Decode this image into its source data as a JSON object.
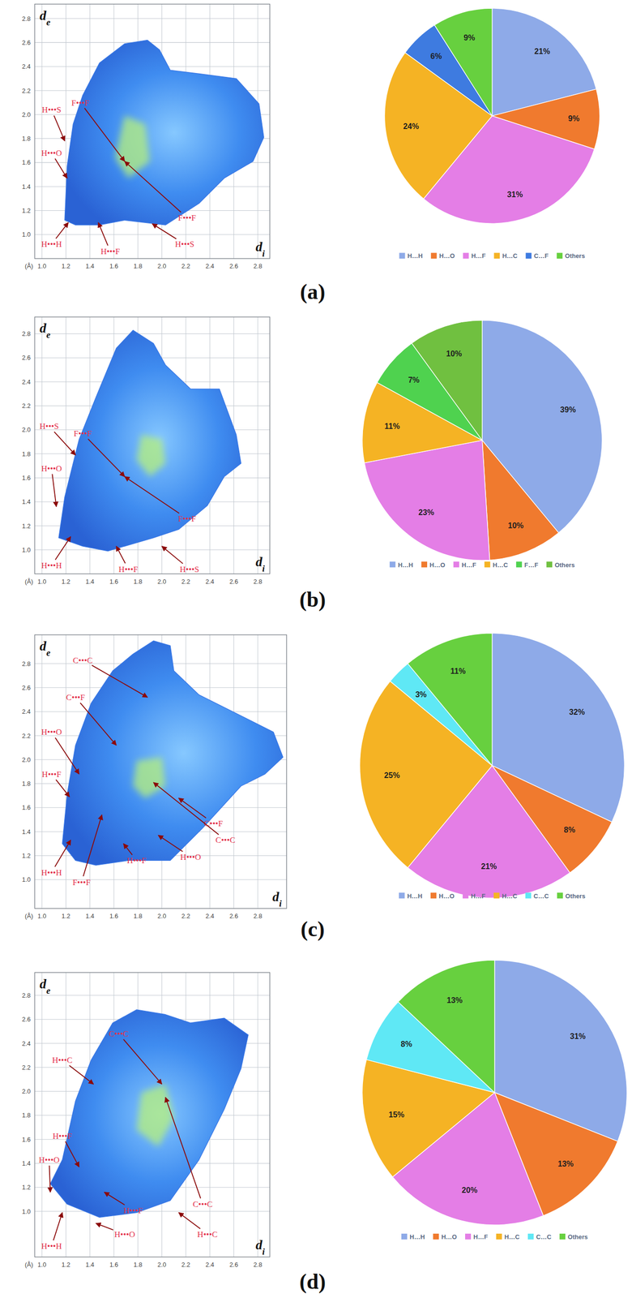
{
  "chart_data": [
    {
      "type": "fingerprint",
      "title": "(a)",
      "x_label": "di",
      "y_label": "de",
      "unit_label": "(Å)",
      "xlim": [
        0.94,
        2.9
      ],
      "ylim": [
        0.8,
        2.92
      ],
      "xticks": [
        {
          "value": 1,
          "label": "1.0"
        },
        1.2,
        1.4,
        1.6,
        1.8,
        {
          "value": 2,
          "label": "2.0"
        },
        2.2,
        2.4,
        2.6,
        2.8
      ],
      "yticks": [
        {
          "value": 1,
          "label": "1.0"
        },
        1.2,
        1.4,
        1.6,
        1.8,
        {
          "value": 2,
          "label": "2.0"
        },
        2.2,
        2.4,
        2.6,
        2.8
      ],
      "grid": true,
      "outline": {
        "x": [
          1.19,
          1.21,
          1.26,
          1.34,
          1.48,
          1.69,
          1.88,
          1.98,
          2.07,
          2.31,
          2.62,
          2.81,
          2.85,
          2.76,
          2.52,
          2.31,
          2.03,
          1.69,
          1.48,
          1.28
        ],
        "y": [
          1.12,
          1.57,
          1.92,
          2.16,
          2.43,
          2.59,
          2.62,
          2.54,
          2.37,
          2.34,
          2.3,
          2.09,
          1.81,
          1.61,
          1.47,
          1.26,
          1.08,
          1.12,
          1.08,
          1.08
        ]
      },
      "core": {
        "x": [
          1.69,
          1.86,
          1.9,
          1.72,
          1.61
        ],
        "y": [
          1.99,
          1.92,
          1.61,
          1.47,
          1.64
        ]
      },
      "annotations": [
        {
          "text": "H•••S",
          "x": 1.19,
          "y": 1.78,
          "text_x": 1.08,
          "text_y": 2.04
        },
        {
          "text": "F•••F",
          "x": 1.69,
          "y": 1.61,
          "text_x": 1.32,
          "text_y": 2.1
        },
        {
          "text": "H•••O",
          "x": 1.21,
          "y": 1.47,
          "text_x": 1.08,
          "text_y": 1.68
        },
        {
          "text": "H•••H",
          "x": 1.22,
          "y": 1.1,
          "text_x": 1.08,
          "text_y": 0.92
        },
        {
          "text": "H•••F",
          "x": 1.47,
          "y": 1.1,
          "text_x": 1.57,
          "text_y": 0.86
        },
        {
          "text": "H•••S",
          "x": 1.92,
          "y": 1.09,
          "text_x": 2.19,
          "text_y": 0.92
        },
        {
          "text": "F•••F",
          "x": 1.69,
          "y": 1.61,
          "text_x": 2.21,
          "text_y": 1.14
        }
      ]
    },
    {
      "type": "pie",
      "categories": [
        "H…H",
        "H…O",
        "H…F",
        "H…C",
        "C…F",
        "Others"
      ],
      "values": [
        21,
        9,
        31,
        24,
        6,
        9
      ],
      "value_labels": [
        "21%",
        "9%",
        "31%",
        "24%",
        "6%",
        "9%"
      ],
      "colors": [
        "#8eaae8",
        "#f07a2e",
        "#e47ee6",
        "#f5b324",
        "#3e7be0",
        "#67d03f"
      ],
      "data_labels": true,
      "legend": "bottom"
    },
    {
      "type": "fingerprint",
      "title": "(b)",
      "x_label": "di",
      "y_label": "de",
      "unit_label": "(Å)",
      "xlim": [
        0.94,
        2.9
      ],
      "ylim": [
        0.8,
        2.94
      ],
      "xticks": [
        {
          "value": 1,
          "label": "1.0"
        },
        1.2,
        1.4,
        1.6,
        1.8,
        {
          "value": 2,
          "label": "2.0"
        },
        2.2,
        2.4,
        2.6,
        2.8
      ],
      "yticks": [
        {
          "value": 1,
          "label": "1.0"
        },
        1.2,
        1.4,
        1.6,
        1.8,
        {
          "value": 2,
          "label": "2.0"
        },
        2.2,
        2.4,
        2.6,
        2.8
      ],
      "grid": true,
      "outline": {
        "x": [
          1.14,
          1.19,
          1.31,
          1.45,
          1.62,
          1.76,
          1.93,
          2.03,
          2.24,
          2.48,
          2.62,
          2.66,
          2.52,
          2.38,
          2.14,
          1.93,
          1.55,
          1.34
        ],
        "y": [
          1.1,
          1.44,
          1.92,
          2.27,
          2.68,
          2.83,
          2.72,
          2.54,
          2.34,
          2.34,
          1.96,
          1.72,
          1.61,
          1.37,
          1.17,
          1.1,
          0.99,
          1.03
        ]
      },
      "core": {
        "x": [
          1.83,
          2.0,
          2.03,
          1.9,
          1.79
        ],
        "y": [
          1.96,
          1.92,
          1.72,
          1.61,
          1.75
        ]
      },
      "annotations": [
        {
          "text": "H•••S",
          "x": 1.28,
          "y": 1.79,
          "text_x": 1.06,
          "text_y": 2.03
        },
        {
          "text": "F•••F",
          "x": 1.69,
          "y": 1.61,
          "text_x": 1.34,
          "text_y": 1.97
        },
        {
          "text": "H•••O",
          "x": 1.12,
          "y": 1.36,
          "text_x": 1.08,
          "text_y": 1.68
        },
        {
          "text": "H•••H",
          "x": 1.24,
          "y": 1.11,
          "text_x": 1.08,
          "text_y": 0.87
        },
        {
          "text": "H•••F",
          "x": 1.62,
          "y": 1.03,
          "text_x": 1.72,
          "text_y": 0.84
        },
        {
          "text": "H•••S",
          "x": 2.0,
          "y": 1.03,
          "text_x": 2.23,
          "text_y": 0.84
        },
        {
          "text": "F•••F",
          "x": 1.69,
          "y": 1.61,
          "text_x": 2.21,
          "text_y": 1.26
        }
      ]
    },
    {
      "type": "pie",
      "categories": [
        "H…H",
        "H…O",
        "H…F",
        "H…C",
        "F…F",
        "Others"
      ],
      "values": [
        39,
        10,
        23,
        11,
        7,
        10
      ],
      "value_labels": [
        "39%",
        "10%",
        "23%",
        "11%",
        "7%",
        "10%"
      ],
      "colors": [
        "#8eaae8",
        "#f07a2e",
        "#e47ee6",
        "#f5b324",
        "#4fd24f",
        "#70c040"
      ],
      "data_labels": true,
      "legend": "bottom"
    },
    {
      "type": "fingerprint",
      "title": "(c)",
      "x_label": "di",
      "y_label": "de",
      "unit_label": "(Å)",
      "xlim": [
        0.94,
        3.04
      ],
      "ylim": [
        0.76,
        3.04
      ],
      "xticks": [
        {
          "value": 1,
          "label": "1.0"
        },
        1.2,
        1.4,
        1.6,
        1.8,
        {
          "value": 2,
          "label": "2.0"
        },
        2.2,
        2.4,
        2.6,
        2.8
      ],
      "yticks": [
        {
          "value": 1,
          "label": "1.0"
        },
        1.2,
        1.4,
        1.6,
        1.8,
        {
          "value": 2,
          "label": "2.0"
        },
        2.2,
        2.4,
        2.6,
        2.8
      ],
      "grid": true,
      "outline": {
        "x": [
          1.17,
          1.21,
          1.28,
          1.41,
          1.59,
          1.76,
          1.93,
          2.07,
          2.1,
          2.31,
          2.59,
          2.93,
          3.01,
          2.86,
          2.66,
          2.34,
          2.07,
          1.72,
          1.45,
          1.28
        ],
        "y": [
          1.3,
          1.71,
          2.12,
          2.47,
          2.74,
          2.88,
          2.99,
          2.95,
          2.74,
          2.54,
          2.4,
          2.23,
          2.02,
          1.88,
          1.78,
          1.43,
          1.16,
          1.16,
          1.12,
          1.16
        ]
      },
      "core": {
        "x": [
          1.79,
          2.0,
          2.03,
          1.86,
          1.76
        ],
        "y": [
          1.99,
          2.02,
          1.78,
          1.68,
          1.78
        ]
      },
      "annotations": [
        {
          "text": "C•••C",
          "x": 1.88,
          "y": 2.52,
          "text_x": 1.34,
          "text_y": 2.83
        },
        {
          "text": "C•••F",
          "x": 1.62,
          "y": 2.12,
          "text_x": 1.28,
          "text_y": 2.52
        },
        {
          "text": "H•••O",
          "x": 1.31,
          "y": 1.88,
          "text_x": 1.08,
          "text_y": 2.23
        },
        {
          "text": "H•••F",
          "x": 1.23,
          "y": 1.69,
          "text_x": 1.08,
          "text_y": 1.88
        },
        {
          "text": "H•••H",
          "x": 1.24,
          "y": 1.33,
          "text_x": 1.08,
          "text_y": 1.06
        },
        {
          "text": "F•••F",
          "x": 1.5,
          "y": 1.54,
          "text_x": 1.33,
          "text_y": 0.98
        },
        {
          "text": "H•••F",
          "x": 1.68,
          "y": 1.3,
          "text_x": 1.79,
          "text_y": 1.16
        },
        {
          "text": "H•••O",
          "x": 1.97,
          "y": 1.37,
          "text_x": 2.24,
          "text_y": 1.19
        },
        {
          "text": "C•••F",
          "x": 2.14,
          "y": 1.68,
          "text_x": 2.43,
          "text_y": 1.47
        },
        {
          "text": "C•••C",
          "x": 1.93,
          "y": 1.81,
          "text_x": 2.53,
          "text_y": 1.33
        }
      ]
    },
    {
      "type": "pie",
      "categories": [
        "H…H",
        "H…O",
        "H…F",
        "H…C",
        "C…C",
        "Others"
      ],
      "values": [
        32,
        8,
        21,
        25,
        3,
        11
      ],
      "value_labels": [
        "32%",
        "8%",
        "21%",
        "25%",
        "3%",
        "11%"
      ],
      "colors": [
        "#8eaae8",
        "#f07a2e",
        "#e47ee6",
        "#f5b324",
        "#5fe8f5",
        "#67d03f"
      ],
      "data_labels": true,
      "legend": "bottom"
    },
    {
      "type": "fingerprint",
      "title": "(d)",
      "x_label": "di",
      "y_label": "de",
      "unit_label": "(Å)",
      "xlim": [
        0.94,
        2.9
      ],
      "ylim": [
        0.62,
        2.99
      ],
      "xticks": [
        {
          "value": 1,
          "label": "1.0"
        },
        1.2,
        1.4,
        1.6,
        1.8,
        {
          "value": 2,
          "label": "2.0"
        },
        2.2,
        2.4,
        2.6,
        2.8
      ],
      "yticks": [
        {
          "value": 1,
          "label": "1.0"
        },
        1.2,
        1.4,
        1.6,
        1.8,
        {
          "value": 2,
          "label": "2.0"
        },
        2.2,
        2.4,
        2.6,
        2.8
      ],
      "grid": true,
      "outline": {
        "x": [
          1.07,
          1.17,
          1.28,
          1.41,
          1.59,
          1.79,
          2.03,
          2.24,
          2.52,
          2.72,
          2.66,
          2.52,
          2.31,
          2.07,
          1.79,
          1.48,
          1.21
        ],
        "y": [
          1.23,
          1.43,
          1.92,
          2.26,
          2.57,
          2.68,
          2.64,
          2.57,
          2.61,
          2.47,
          2.19,
          1.85,
          1.43,
          1.09,
          0.99,
          0.95,
          1.06
        ]
      },
      "core": {
        "x": [
          1.83,
          2.03,
          2.1,
          1.97,
          1.79
        ],
        "y": [
          1.99,
          2.06,
          1.78,
          1.54,
          1.68
        ]
      },
      "annotations": [
        {
          "text": "C•••C",
          "x": 2.0,
          "y": 2.06,
          "text_x": 1.64,
          "text_y": 2.48
        },
        {
          "text": "H•••C",
          "x": 1.43,
          "y": 2.06,
          "text_x": 1.17,
          "text_y": 2.26
        },
        {
          "text": "H•••F",
          "x": 1.31,
          "y": 1.37,
          "text_x": 1.17,
          "text_y": 1.63
        },
        {
          "text": "H•••O",
          "x": 1.07,
          "y": 1.16,
          "text_x": 1.06,
          "text_y": 1.43
        },
        {
          "text": "H•••H",
          "x": 1.17,
          "y": 0.99,
          "text_x": 1.08,
          "text_y": 0.71
        },
        {
          "text": "H•••F",
          "x": 1.52,
          "y": 1.16,
          "text_x": 1.76,
          "text_y": 1.01
        },
        {
          "text": "H•••O",
          "x": 1.45,
          "y": 0.9,
          "text_x": 1.69,
          "text_y": 0.81
        },
        {
          "text": "H•••C",
          "x": 2.14,
          "y": 0.99,
          "text_x": 2.38,
          "text_y": 0.81
        },
        {
          "text": "C•••C",
          "x": 2.03,
          "y": 1.95,
          "text_x": 2.34,
          "text_y": 1.06
        }
      ]
    },
    {
      "type": "pie",
      "categories": [
        "H…H",
        "H…O",
        "H…F",
        "H…C",
        "C…C",
        "Others"
      ],
      "values": [
        31,
        13,
        20,
        15,
        8,
        13
      ],
      "value_labels": [
        "31%",
        "13%",
        "20%",
        "15%",
        "8%",
        "13%"
      ],
      "colors": [
        "#8eaae8",
        "#f07a2e",
        "#e47ee6",
        "#f5b324",
        "#5fe8f5",
        "#67d03f"
      ],
      "data_labels": true,
      "legend": "bottom"
    }
  ]
}
